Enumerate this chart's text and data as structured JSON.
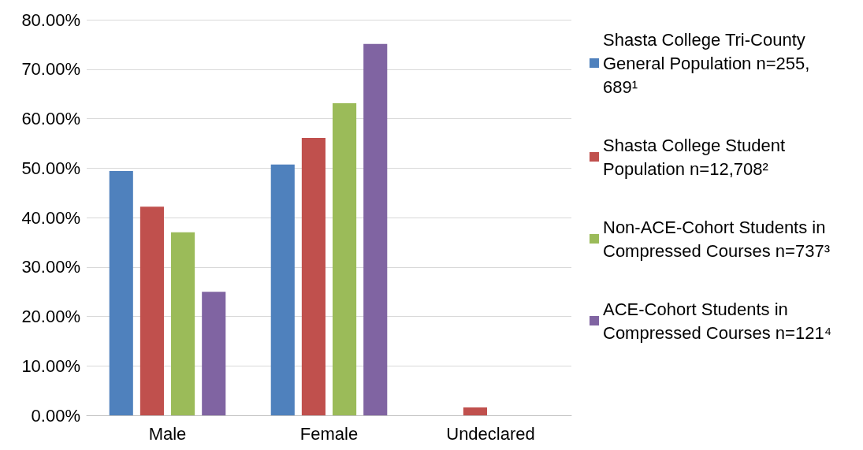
{
  "chart_data": {
    "type": "bar",
    "categories": [
      "Male",
      "Female",
      "Undeclared"
    ],
    "series": [
      {
        "name": "Shasta College Tri-County General Population n=255,689¹",
        "color": "#4f81bd",
        "values": [
          49.4,
          50.7,
          null
        ]
      },
      {
        "name": "Shasta College Student Population n=12,708²",
        "color": "#c0504d",
        "values": [
          42.2,
          56.1,
          1.6
        ]
      },
      {
        "name": "Non-ACE-Cohort Students in Compressed Courses n=737³",
        "color": "#9bbb59",
        "values": [
          37.0,
          63.1,
          null
        ]
      },
      {
        "name": "ACE-Cohort Students in Compressed Courses n=121⁴",
        "color": "#8064a2",
        "values": [
          25.0,
          75.1,
          null
        ]
      }
    ],
    "ylim": [
      0,
      80
    ],
    "yticks": [
      {
        "value": 0,
        "label": "0.00%"
      },
      {
        "value": 10,
        "label": "10.00%"
      },
      {
        "value": 20,
        "label": "20.00%"
      },
      {
        "value": 30,
        "label": "30.00%"
      },
      {
        "value": 40,
        "label": "40.00%"
      },
      {
        "value": 50,
        "label": "50.00%"
      },
      {
        "value": 60,
        "label": "60.00%"
      },
      {
        "value": 70,
        "label": "70.00%"
      },
      {
        "value": 80,
        "label": "80.00%"
      }
    ],
    "grid": "y",
    "legend": "right"
  }
}
